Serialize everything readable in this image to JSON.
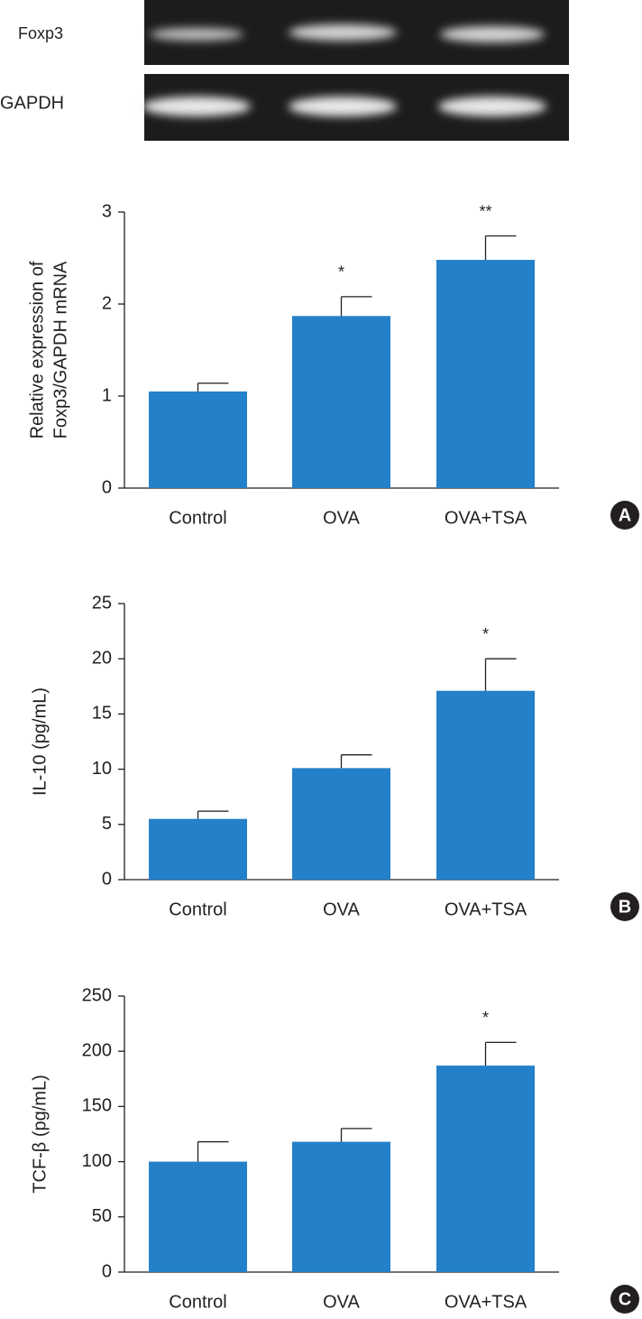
{
  "gel_labels": [
    "Foxp3",
    "GAPDH"
  ],
  "chart_data": [
    {
      "type": "bar",
      "panel": "A",
      "ylabel": [
        "Relative expression of",
        "Foxp3/GAPDH mRNA"
      ],
      "categories": [
        "Control",
        "OVA",
        "OVA+TSA"
      ],
      "values": [
        1.05,
        1.87,
        2.48
      ],
      "errors": [
        0.09,
        0.21,
        0.26
      ],
      "annotations": [
        null,
        "*",
        "**"
      ],
      "color": "#2480c8",
      "ylim": [
        0,
        3
      ],
      "yticks": [
        0,
        1,
        2,
        3
      ]
    },
    {
      "type": "bar",
      "panel": "B",
      "ylabel": [
        "IL-10 (pg/mL)"
      ],
      "categories": [
        "Control",
        "OVA",
        "OVA+TSA"
      ],
      "values": [
        5.5,
        10.1,
        17.1
      ],
      "errors": [
        0.7,
        1.2,
        2.9
      ],
      "annotations": [
        null,
        null,
        "*"
      ],
      "color": "#2480c8",
      "ylim": [
        0,
        25
      ],
      "yticks": [
        0,
        5,
        10,
        15,
        20,
        25
      ]
    },
    {
      "type": "bar",
      "panel": "C",
      "ylabel": [
        "TCF-β (pg/mL)"
      ],
      "categories": [
        "Control",
        "OVA",
        "OVA+TSA"
      ],
      "values": [
        100,
        118,
        187
      ],
      "errors": [
        18,
        12,
        21
      ],
      "annotations": [
        null,
        null,
        "*"
      ],
      "color": "#2480c8",
      "ylim": [
        0,
        250
      ],
      "yticks": [
        0,
        50,
        100,
        150,
        200,
        250
      ]
    }
  ]
}
